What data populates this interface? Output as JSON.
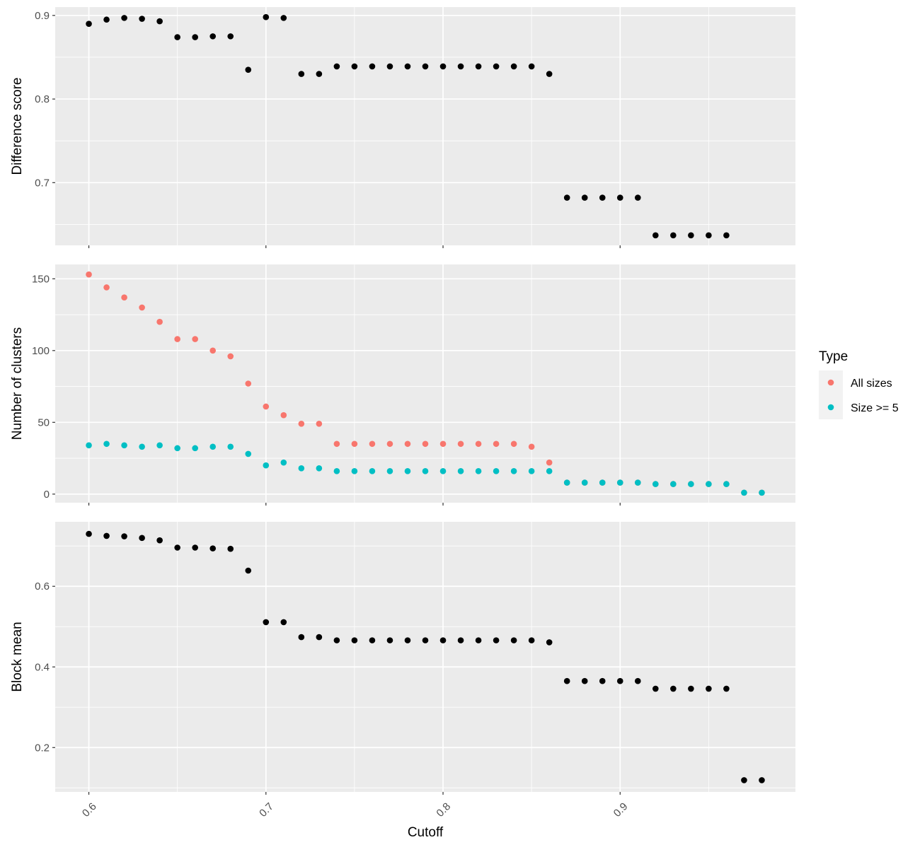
{
  "figure": {
    "xlabel": "Cutoff",
    "legend": {
      "title": "Type",
      "placement": "right",
      "items": [
        {
          "label": "All sizes",
          "color": "#F8766D"
        },
        {
          "label": "Size >= 5",
          "color": "#00BFC4"
        }
      ]
    },
    "x_ticks": [
      "0.6",
      "0.7",
      "0.8",
      "0.9"
    ],
    "panel_background": "#EBEBEB",
    "grid_color": "#FFFFFF"
  },
  "chart_data": [
    {
      "type": "scatter",
      "ylabel": "Difference score",
      "xlim": [
        0.581,
        0.999
      ],
      "ylim": [
        0.625,
        0.91
      ],
      "y_ticks": [
        {
          "value": 0.7,
          "label": "0.7"
        },
        {
          "value": 0.8,
          "label": "0.8"
        },
        {
          "value": 0.9,
          "label": "0.9"
        }
      ],
      "y_minor": [
        0.65,
        0.75,
        0.85
      ],
      "grid": true,
      "series": [
        {
          "color": "#000000",
          "points": [
            [
              0.6,
              0.89
            ],
            [
              0.61,
              0.895
            ],
            [
              0.62,
              0.897
            ],
            [
              0.63,
              0.896
            ],
            [
              0.64,
              0.893
            ],
            [
              0.65,
              0.874
            ],
            [
              0.66,
              0.874
            ],
            [
              0.67,
              0.875
            ],
            [
              0.68,
              0.875
            ],
            [
              0.69,
              0.835
            ],
            [
              0.7,
              0.898
            ],
            [
              0.71,
              0.897
            ],
            [
              0.72,
              0.83
            ],
            [
              0.73,
              0.83
            ],
            [
              0.74,
              0.839
            ],
            [
              0.75,
              0.839
            ],
            [
              0.76,
              0.839
            ],
            [
              0.77,
              0.839
            ],
            [
              0.78,
              0.839
            ],
            [
              0.79,
              0.839
            ],
            [
              0.8,
              0.839
            ],
            [
              0.81,
              0.839
            ],
            [
              0.82,
              0.839
            ],
            [
              0.83,
              0.839
            ],
            [
              0.84,
              0.839
            ],
            [
              0.85,
              0.839
            ],
            [
              0.86,
              0.83
            ],
            [
              0.87,
              0.682
            ],
            [
              0.88,
              0.682
            ],
            [
              0.89,
              0.682
            ],
            [
              0.9,
              0.682
            ],
            [
              0.91,
              0.682
            ],
            [
              0.92,
              0.637
            ],
            [
              0.93,
              0.637
            ],
            [
              0.94,
              0.637
            ],
            [
              0.95,
              0.637
            ],
            [
              0.96,
              0.637
            ]
          ]
        }
      ]
    },
    {
      "type": "scatter",
      "ylabel": "Number of clusters",
      "xlim": [
        0.581,
        0.999
      ],
      "ylim": [
        -6,
        160
      ],
      "y_ticks": [
        {
          "value": 0,
          "label": "0"
        },
        {
          "value": 50,
          "label": "50"
        },
        {
          "value": 100,
          "label": "100"
        },
        {
          "value": 150,
          "label": "150"
        }
      ],
      "y_minor": [
        25,
        75,
        125
      ],
      "grid": true,
      "series": [
        {
          "name": "All sizes",
          "color": "#F8766D",
          "points": [
            [
              0.6,
              153
            ],
            [
              0.61,
              144
            ],
            [
              0.62,
              137
            ],
            [
              0.63,
              130
            ],
            [
              0.64,
              120
            ],
            [
              0.65,
              108
            ],
            [
              0.66,
              108
            ],
            [
              0.67,
              100
            ],
            [
              0.68,
              96
            ],
            [
              0.69,
              77
            ],
            [
              0.7,
              61
            ],
            [
              0.71,
              55
            ],
            [
              0.72,
              49
            ],
            [
              0.73,
              49
            ],
            [
              0.74,
              35
            ],
            [
              0.75,
              35
            ],
            [
              0.76,
              35
            ],
            [
              0.77,
              35
            ],
            [
              0.78,
              35
            ],
            [
              0.79,
              35
            ],
            [
              0.8,
              35
            ],
            [
              0.81,
              35
            ],
            [
              0.82,
              35
            ],
            [
              0.83,
              35
            ],
            [
              0.84,
              35
            ],
            [
              0.85,
              33
            ],
            [
              0.86,
              22
            ],
            [
              0.87,
              8
            ],
            [
              0.88,
              8
            ],
            [
              0.89,
              8
            ],
            [
              0.9,
              8
            ],
            [
              0.91,
              8
            ],
            [
              0.92,
              7
            ],
            [
              0.93,
              7
            ],
            [
              0.94,
              7
            ],
            [
              0.95,
              7
            ],
            [
              0.96,
              7
            ],
            [
              0.97,
              1
            ],
            [
              0.98,
              1
            ]
          ]
        },
        {
          "name": "Size >= 5",
          "color": "#00BFC4",
          "points": [
            [
              0.6,
              34
            ],
            [
              0.61,
              35
            ],
            [
              0.62,
              34
            ],
            [
              0.63,
              33
            ],
            [
              0.64,
              34
            ],
            [
              0.65,
              32
            ],
            [
              0.66,
              32
            ],
            [
              0.67,
              33
            ],
            [
              0.68,
              33
            ],
            [
              0.69,
              28
            ],
            [
              0.7,
              20
            ],
            [
              0.71,
              22
            ],
            [
              0.72,
              18
            ],
            [
              0.73,
              18
            ],
            [
              0.74,
              16
            ],
            [
              0.75,
              16
            ],
            [
              0.76,
              16
            ],
            [
              0.77,
              16
            ],
            [
              0.78,
              16
            ],
            [
              0.79,
              16
            ],
            [
              0.8,
              16
            ],
            [
              0.81,
              16
            ],
            [
              0.82,
              16
            ],
            [
              0.83,
              16
            ],
            [
              0.84,
              16
            ],
            [
              0.85,
              16
            ],
            [
              0.86,
              16
            ],
            [
              0.87,
              8
            ],
            [
              0.88,
              8
            ],
            [
              0.89,
              8
            ],
            [
              0.9,
              8
            ],
            [
              0.91,
              8
            ],
            [
              0.92,
              7
            ],
            [
              0.93,
              7
            ],
            [
              0.94,
              7
            ],
            [
              0.95,
              7
            ],
            [
              0.96,
              7
            ],
            [
              0.97,
              1
            ],
            [
              0.98,
              1
            ]
          ]
        }
      ]
    },
    {
      "type": "scatter",
      "ylabel": "Block mean",
      "xlim": [
        0.581,
        0.999
      ],
      "ylim": [
        0.09,
        0.76
      ],
      "y_ticks": [
        {
          "value": 0.2,
          "label": "0.2"
        },
        {
          "value": 0.4,
          "label": "0.4"
        },
        {
          "value": 0.6,
          "label": "0.6"
        }
      ],
      "y_minor": [
        0.1,
        0.3,
        0.5,
        0.7
      ],
      "grid": true,
      "series": [
        {
          "color": "#000000",
          "points": [
            [
              0.6,
              0.73
            ],
            [
              0.61,
              0.725
            ],
            [
              0.62,
              0.724
            ],
            [
              0.63,
              0.72
            ],
            [
              0.64,
              0.714
            ],
            [
              0.65,
              0.696
            ],
            [
              0.66,
              0.696
            ],
            [
              0.67,
              0.694
            ],
            [
              0.68,
              0.693
            ],
            [
              0.69,
              0.639
            ],
            [
              0.7,
              0.511
            ],
            [
              0.71,
              0.511
            ],
            [
              0.72,
              0.474
            ],
            [
              0.73,
              0.474
            ],
            [
              0.74,
              0.466
            ],
            [
              0.75,
              0.466
            ],
            [
              0.76,
              0.466
            ],
            [
              0.77,
              0.466
            ],
            [
              0.78,
              0.466
            ],
            [
              0.79,
              0.466
            ],
            [
              0.8,
              0.466
            ],
            [
              0.81,
              0.466
            ],
            [
              0.82,
              0.466
            ],
            [
              0.83,
              0.466
            ],
            [
              0.84,
              0.466
            ],
            [
              0.85,
              0.466
            ],
            [
              0.86,
              0.461
            ],
            [
              0.87,
              0.365
            ],
            [
              0.88,
              0.365
            ],
            [
              0.89,
              0.365
            ],
            [
              0.9,
              0.365
            ],
            [
              0.91,
              0.365
            ],
            [
              0.92,
              0.346
            ],
            [
              0.93,
              0.346
            ],
            [
              0.94,
              0.346
            ],
            [
              0.95,
              0.346
            ],
            [
              0.96,
              0.346
            ],
            [
              0.97,
              0.119
            ],
            [
              0.98,
              0.119
            ]
          ]
        }
      ]
    }
  ]
}
